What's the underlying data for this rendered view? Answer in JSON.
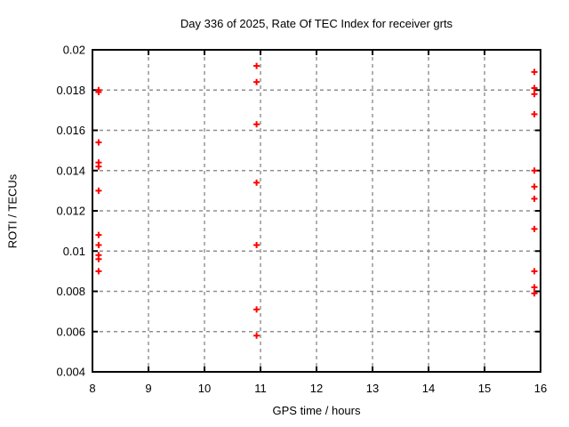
{
  "chart_data": {
    "type": "scatter",
    "title": "Day 336 of 2025, Rate Of TEC Index for receiver grts",
    "xlabel": "GPS time / hours",
    "ylabel": "ROTI / TECUs",
    "xlim": [
      8,
      16
    ],
    "ylim": [
      0.004,
      0.02
    ],
    "xticks": [
      [
        8,
        "8"
      ],
      [
        9,
        "9"
      ],
      [
        10,
        "10"
      ],
      [
        11,
        "11"
      ],
      [
        12,
        "12"
      ],
      [
        13,
        "13"
      ],
      [
        14,
        "14"
      ],
      [
        15,
        "15"
      ],
      [
        16,
        "16"
      ]
    ],
    "yticks": [
      [
        0.004,
        "0.004"
      ],
      [
        0.006,
        "0.006"
      ],
      [
        0.008,
        "0.008"
      ],
      [
        0.01,
        "0.01"
      ],
      [
        0.012,
        "0.012"
      ],
      [
        0.014,
        "0.014"
      ],
      [
        0.016,
        "0.016"
      ],
      [
        0.018,
        "0.018"
      ],
      [
        0.02,
        "0.02"
      ]
    ],
    "grid": "dashed",
    "legend": "none",
    "marker": "plus",
    "series": [
      {
        "name": "ROTI",
        "color": "#ff0000",
        "points": [
          [
            8.11,
            0.018
          ],
          [
            8.11,
            0.0179
          ],
          [
            8.11,
            0.0154
          ],
          [
            8.11,
            0.0144
          ],
          [
            8.11,
            0.0142
          ],
          [
            8.11,
            0.013
          ],
          [
            8.11,
            0.0108
          ],
          [
            8.11,
            0.0103
          ],
          [
            8.11,
            0.0098
          ],
          [
            8.11,
            0.0096
          ],
          [
            8.11,
            0.009
          ],
          [
            10.93,
            0.0192
          ],
          [
            10.93,
            0.0184
          ],
          [
            10.93,
            0.0163
          ],
          [
            10.93,
            0.0134
          ],
          [
            10.93,
            0.0103
          ],
          [
            10.93,
            0.0071
          ],
          [
            10.93,
            0.0058
          ],
          [
            15.89,
            0.0189
          ],
          [
            15.89,
            0.0181
          ],
          [
            15.89,
            0.0178
          ],
          [
            15.89,
            0.0168
          ],
          [
            15.89,
            0.014
          ],
          [
            15.89,
            0.0132
          ],
          [
            15.89,
            0.0126
          ],
          [
            15.89,
            0.0111
          ],
          [
            15.89,
            0.009
          ],
          [
            15.89,
            0.0082
          ],
          [
            15.89,
            0.0079
          ]
        ]
      }
    ]
  },
  "colors": {
    "background": "#ffffff",
    "axis": "#000000",
    "grid": "#8f8f8f",
    "marker": "#ff0000",
    "text": "#000000"
  }
}
